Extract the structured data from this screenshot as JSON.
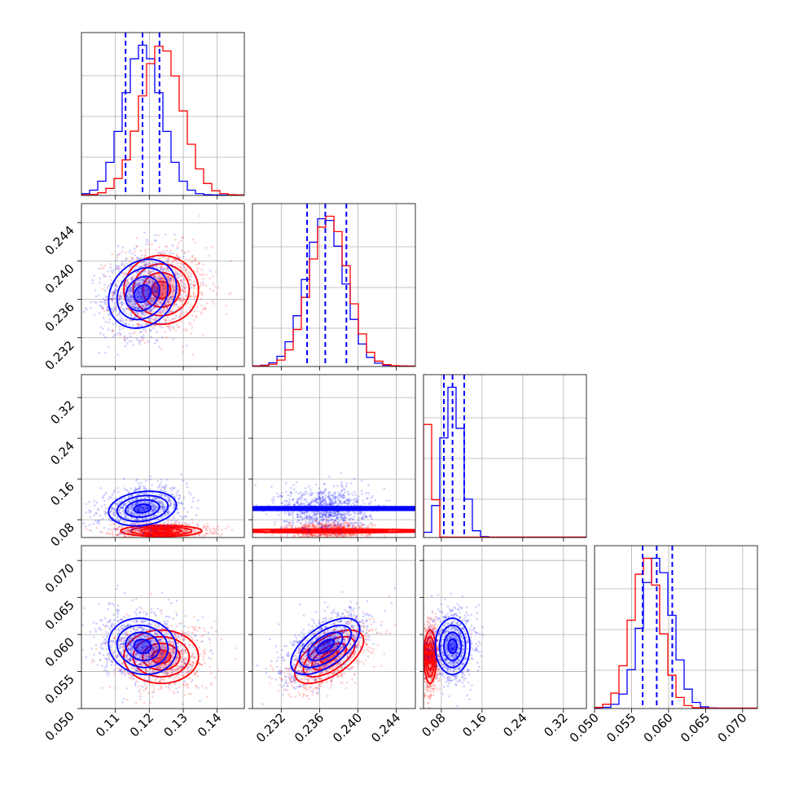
{
  "chart_data": {
    "type": "corner",
    "grid": true,
    "colors": {
      "series_1": "#0000ff",
      "series_2": "#ff0000",
      "quantiles": "#0000ff"
    },
    "parameters": [
      {
        "key": "p1",
        "range": [
          0.1,
          0.148
        ],
        "ticks": [
          "0.11",
          "0.12",
          "0.13",
          "0.14"
        ],
        "tick_values": [
          0.11,
          0.12,
          0.13,
          0.14
        ]
      },
      {
        "key": "p2",
        "range": [
          0.229,
          0.246
        ],
        "ticks": [
          "0.232",
          "0.236",
          "0.240",
          "0.244"
        ],
        "tick_values": [
          0.232,
          0.236,
          0.24,
          0.244
        ]
      },
      {
        "key": "p3",
        "range": [
          0.045,
          0.365
        ],
        "ticks": [
          "0.08",
          "0.16",
          "0.24",
          "0.32"
        ],
        "tick_values": [
          0.08,
          0.16,
          0.24,
          0.32
        ]
      },
      {
        "key": "p4",
        "range": [
          0.05,
          0.072
        ],
        "ticks": [
          "0.050",
          "0.055",
          "0.060",
          "0.065",
          "0.070"
        ],
        "tick_values": [
          0.05,
          0.055,
          0.06,
          0.065,
          0.07
        ]
      }
    ],
    "series": [
      {
        "color": "#0000ff",
        "mean": [
          0.118,
          0.2366,
          0.102,
          0.0584
        ],
        "sd": [
          0.005,
          0.0018,
          0.017,
          0.0019
        ],
        "corr": [
          [
            1.0,
            0.2,
            0.2,
            -0.1
          ],
          [
            0.2,
            1.0,
            0.0,
            0.6
          ],
          [
            0.2,
            0.0,
            1.0,
            0.0
          ],
          [
            -0.1,
            0.6,
            0.0,
            1.0
          ]
        ],
        "quantiles": [
          [
            0.113,
            0.118,
            0.123
          ],
          [
            0.2347,
            0.2366,
            0.2388
          ],
          [
            0.085,
            0.102,
            0.125
          ],
          [
            0.0565,
            0.0584,
            0.0605
          ]
        ]
      },
      {
        "color": "#ff0000",
        "mean": [
          0.1235,
          0.237,
          0.058,
          0.057
        ],
        "sd": [
          0.0055,
          0.0018,
          0.006,
          0.0018
        ],
        "corr": [
          [
            1.0,
            0.0,
            0.0,
            0.0
          ],
          [
            0.0,
            1.0,
            0.0,
            0.6
          ],
          [
            0.0,
            0.0,
            1.0,
            0.0
          ],
          [
            0.0,
            0.6,
            0.0,
            1.0
          ]
        ]
      }
    ]
  }
}
